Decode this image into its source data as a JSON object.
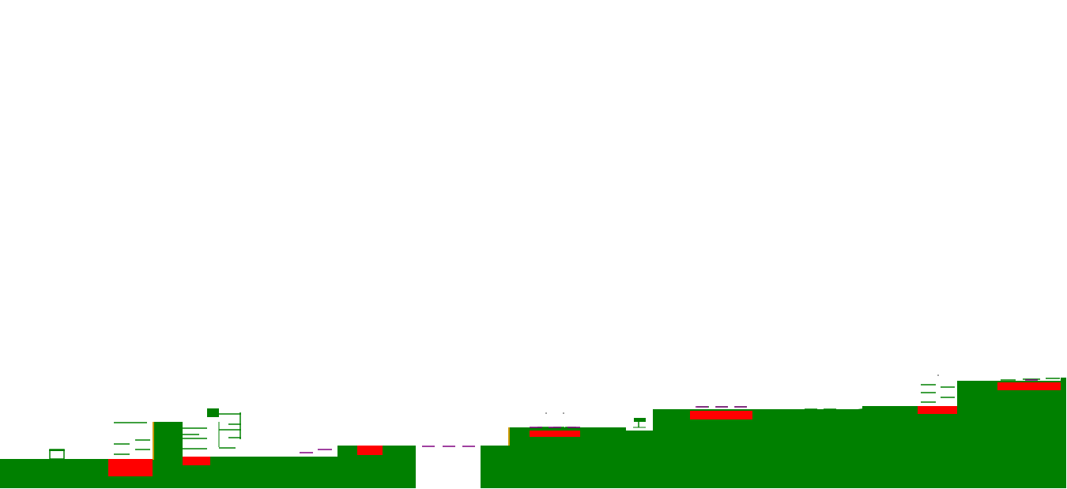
{
  "colors": {
    "background": "#ffffff",
    "ground": "#008000",
    "hazard": "#ff0000",
    "platform": "#008000",
    "bridge": "#800080",
    "edge": "#cc9900"
  },
  "level": {
    "ground_segments": 12,
    "hazard_pits": 7,
    "ledges": 30,
    "bridge_dashes": 12
  }
}
